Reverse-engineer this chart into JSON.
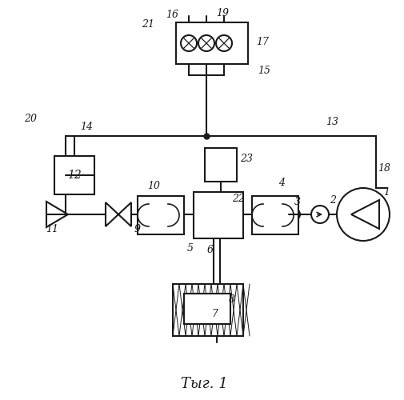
{
  "background": "#ffffff",
  "lc": "#1a1a1a",
  "lw": 1.5,
  "caption": "Τыг. 1",
  "figsize": [
    5.05,
    5.0
  ],
  "dpi": 100
}
